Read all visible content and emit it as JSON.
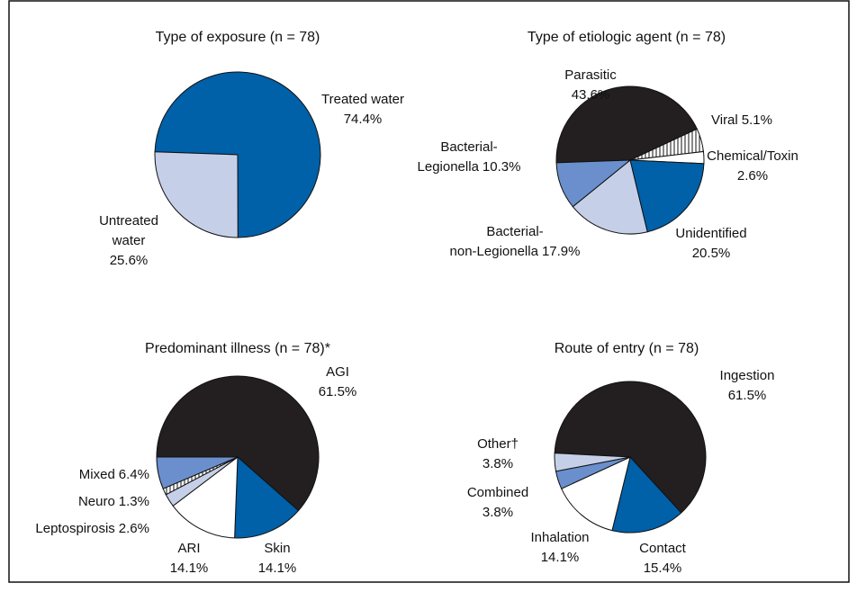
{
  "chart_data": [
    {
      "type": "pie",
      "title": "Type of exposure (n = 78)",
      "categories": [
        "Treated water",
        "Untreated water"
      ],
      "values": [
        74.4,
        25.6
      ],
      "value_labels": [
        "74.4%",
        "25.6%"
      ],
      "colors": [
        "#0060a8",
        "#c5d0e8"
      ]
    },
    {
      "type": "pie",
      "title": "Type of etiologic agent (n = 78)",
      "categories": [
        "Parasitic",
        "Viral",
        "Chemical/Toxin",
        "Unidentified",
        "Bacterial-non-Legionella",
        "Bacterial-Legionella"
      ],
      "values": [
        43.6,
        5.1,
        2.6,
        20.5,
        17.9,
        10.3
      ],
      "value_labels": [
        "43.6%",
        "5.1%",
        "2.6%",
        "20.5%",
        "17.9%",
        "10.3%"
      ],
      "colors": [
        "#231f20",
        "hatch",
        "#ffffff",
        "#0060a8",
        "#c5d0e8",
        "#6a8fcc"
      ]
    },
    {
      "type": "pie",
      "title": "Predominant illness (n = 78)*",
      "categories": [
        "AGI",
        "Skin",
        "ARI",
        "Leptospirosis",
        "Neuro",
        "Mixed"
      ],
      "values": [
        61.5,
        14.1,
        14.1,
        2.6,
        1.3,
        6.4
      ],
      "value_labels": [
        "61.5%",
        "14.1%",
        "14.1%",
        "2.6%",
        "1.3%",
        "6.4%"
      ],
      "colors": [
        "#231f20",
        "#0060a8",
        "#ffffff",
        "#c5d0e8",
        "hatch",
        "#6a8fcc"
      ]
    },
    {
      "type": "pie",
      "title": "Route of entry (n = 78)",
      "categories": [
        "Ingestion",
        "Contact",
        "Inhalation",
        "Combined",
        "Other†"
      ],
      "values": [
        61.5,
        15.4,
        14.1,
        3.8,
        3.8
      ],
      "value_labels": [
        "61.5%",
        "15.4%",
        "14.1%",
        "3.8%",
        "3.8%"
      ],
      "colors": [
        "#231f20",
        "#0060a8",
        "#ffffff",
        "#6a8fcc",
        "#c5d0e8"
      ]
    }
  ]
}
